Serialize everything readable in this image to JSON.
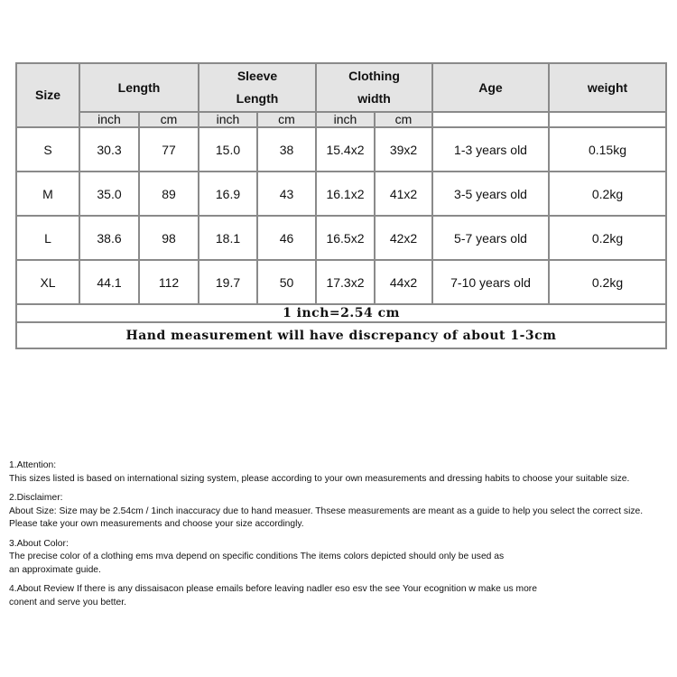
{
  "table": {
    "headers": [
      "Size",
      "Length",
      "Sleeve Length",
      "Clothing width",
      "Age",
      "weight"
    ],
    "units": [
      "inch",
      "cm",
      "inch",
      "cm",
      "inch",
      "cm"
    ],
    "rows": [
      [
        "S",
        "30.3",
        "77",
        "15.0",
        "38",
        "15.4x2",
        "39x2",
        "1-3 years old",
        "0.15kg"
      ],
      [
        "M",
        "35.0",
        "89",
        "16.9",
        "43",
        "16.1x2",
        "41x2",
        "3-5 years old",
        "0.2kg"
      ],
      [
        "L",
        "38.6",
        "98",
        "18.1",
        "46",
        "16.5x2",
        "42x2",
        "5-7 years old",
        "0.2kg"
      ],
      [
        "XL",
        "44.1",
        "112",
        "19.7",
        "50",
        "17.3x2",
        "44x2",
        "7-10 years old",
        "0.2kg"
      ]
    ],
    "conversion_note": "1 inch=2.54 cm",
    "discrepancy_note": "Hand measurement will have discrepancy of about 1-3cm"
  },
  "notes": [
    {
      "title": "1.Attention:",
      "lines": [
        "This sizes listed is based on international sizing system, please according to your own measurements and dressing habits to choose your suitable size."
      ]
    },
    {
      "title": "2.Disclaimer:",
      "lines": [
        "About Size: Size may be 2.54cm / 1inch inaccuracy due to hand measuer. Thsese measurements are meant as a guide to help you select the correct size.",
        "Please take your own measurements and choose your size accordingly."
      ]
    },
    {
      "title": "3.About Color:",
      "lines": [
        "The precise color of a clothing ems mva depend on specific conditions The items colors depicted should only be used as",
        "an approximate guide."
      ]
    },
    {
      "title": "",
      "lines": [
        "4.About Review If there is any dissaisacon please emails before leaving nadler eso esv the see Your ecognition w make us more",
        "conent and serve you better."
      ]
    }
  ]
}
